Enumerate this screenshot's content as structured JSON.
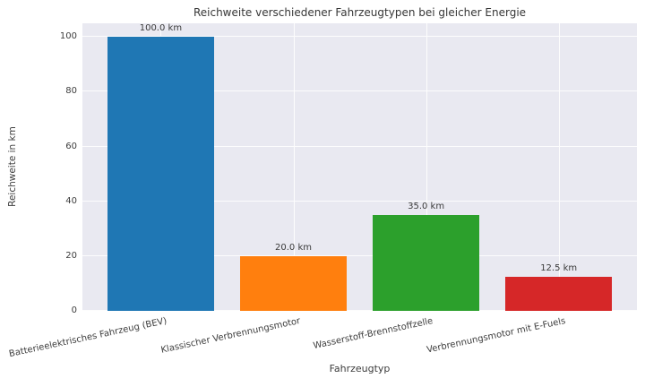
{
  "chart_data": {
    "type": "bar",
    "title": "Reichweite verschiedener Fahrzeugtypen bei gleicher Energie",
    "xlabel": "Fahrzeugtyp",
    "ylabel": "Reichweite in km",
    "categories": [
      "Batterieelektrisches Fahrzeug (BEV)",
      "Klassischer Verbrennungsmotor",
      "Wasserstoff-Brennstoffzelle",
      "Verbrennungsmotor mit E-Fuels"
    ],
    "values": [
      100.0,
      20.0,
      35.0,
      12.5
    ],
    "value_labels": [
      "100.0 km",
      "20.0 km",
      "35.0 km",
      "12.5 km"
    ],
    "bar_colors": [
      "#1f77b4",
      "#ff7f0e",
      "#2ca02c",
      "#d62728"
    ],
    "yticks": [
      0,
      20,
      40,
      60,
      80,
      100
    ],
    "ylim": [
      0,
      105
    ],
    "grid": true,
    "legend": "none",
    "plot_bg_color": "#e9e9f1",
    "grid_color": "#fdfdfd"
  }
}
